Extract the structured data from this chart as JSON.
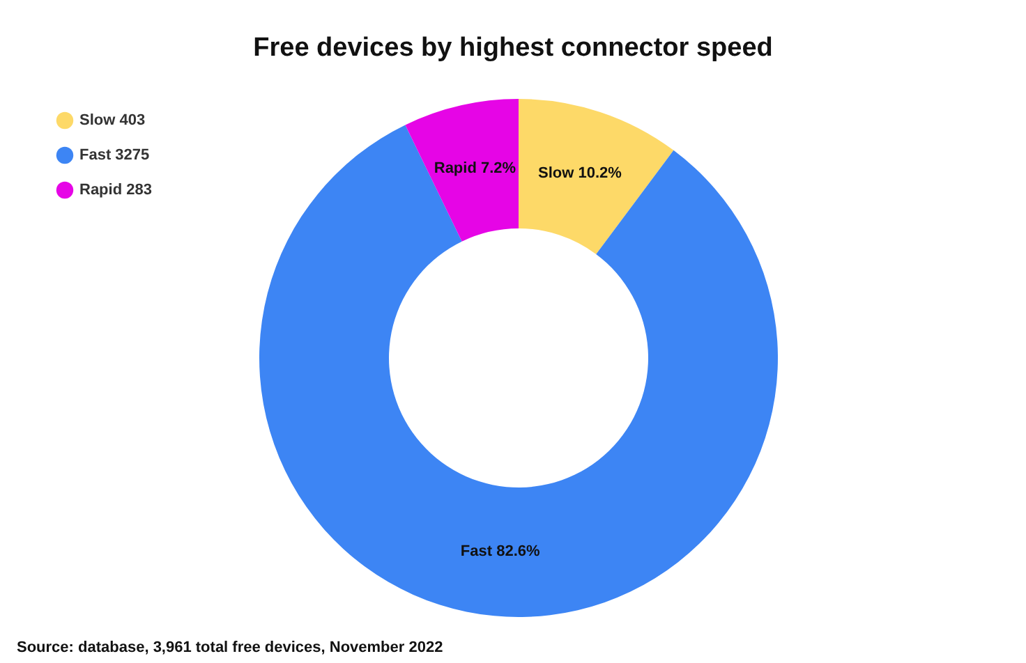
{
  "chart_data": {
    "type": "donut",
    "title": "Free devices by highest connector speed",
    "categories": [
      "Slow 403",
      "Fast 3275",
      "Rapid 283"
    ],
    "values": [
      10.2,
      82.6,
      7.2
    ],
    "value_labels": [
      "Slow 10.2%",
      "Fast 82.6%",
      "Rapid 7.2%"
    ],
    "colors": [
      "#fdd968",
      "#3d85f4",
      "#e605e6"
    ],
    "legend": "top left",
    "annotations": [
      "Source: database, 3,961 total free devices, November 2022"
    ]
  }
}
